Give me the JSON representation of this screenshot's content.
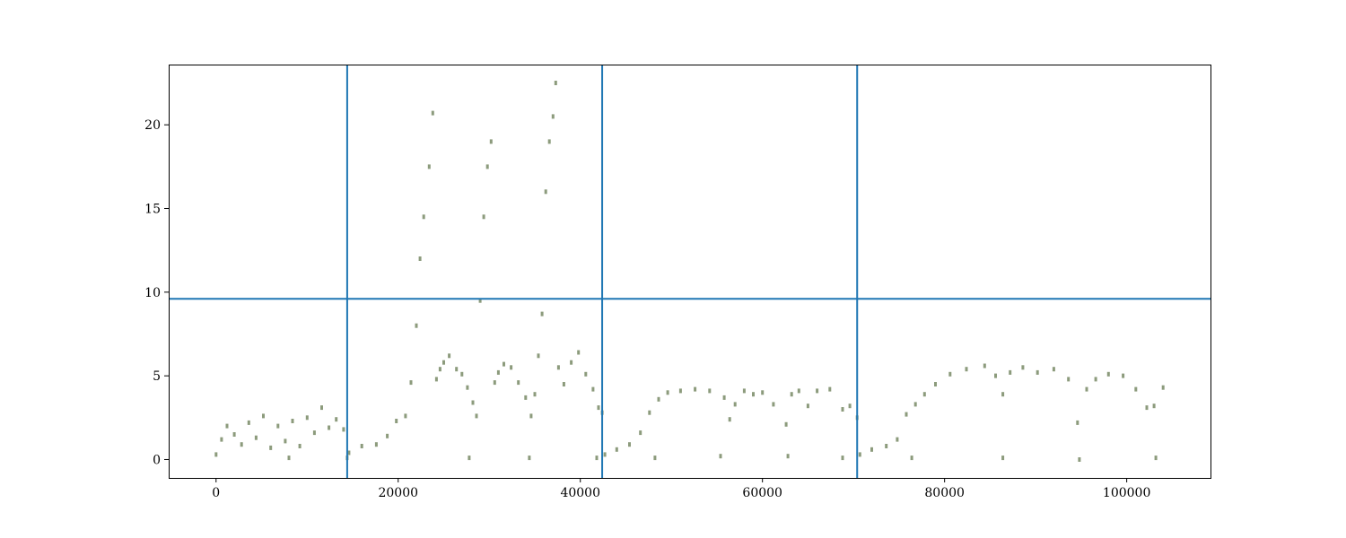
{
  "chart_data": {
    "type": "scatter",
    "title": "",
    "xlabel": "",
    "ylabel": "",
    "xlim": [
      -5200,
      109200
    ],
    "ylim": [
      -1.1,
      23.6
    ],
    "grid": false,
    "legend": "none",
    "point_color": "#8c9b7c",
    "line_color": "#1f77b4",
    "x_ticks": [
      {
        "value": 0,
        "label": "0"
      },
      {
        "value": 20000,
        "label": "20000"
      },
      {
        "value": 40000,
        "label": "40000"
      },
      {
        "value": 60000,
        "label": "60000"
      },
      {
        "value": 80000,
        "label": "80000"
      },
      {
        "value": 100000,
        "label": "100000"
      }
    ],
    "y_ticks": [
      {
        "value": 0,
        "label": "0"
      },
      {
        "value": 5,
        "label": "5"
      },
      {
        "value": 10,
        "label": "10"
      },
      {
        "value": 15,
        "label": "15"
      },
      {
        "value": 20,
        "label": "20"
      }
    ],
    "vertical_lines": [
      14400,
      42400,
      70400
    ],
    "horizontal_lines": [
      9.6
    ],
    "series": [
      {
        "x": [
          0,
          600,
          1200,
          2000,
          2800,
          3600,
          4400,
          5200,
          6000,
          6800,
          7600,
          8400,
          9200,
          10000,
          10800,
          11600,
          12400,
          13200,
          14000,
          14400,
          14600,
          16000,
          17600,
          18800,
          19800,
          20800,
          21400,
          22000,
          22400,
          22800,
          23400,
          23800,
          24200,
          24600,
          25000,
          25600,
          26400,
          27000,
          27600,
          28200,
          28600,
          29000,
          29400,
          29800,
          30200,
          30600,
          31000,
          31600,
          32400,
          33200,
          34000,
          34600,
          35000,
          35400,
          35800,
          36200,
          36600,
          37000,
          37300,
          37600,
          38200,
          39000,
          39800,
          40600,
          41400,
          42000,
          42400,
          42700,
          44000,
          45400,
          46600,
          47600,
          48600,
          49600,
          51000,
          52600,
          54200,
          55800,
          56400,
          57000,
          58000,
          59000,
          60000,
          61200,
          62600,
          63200,
          64000,
          65000,
          66000,
          67400,
          68800,
          69600,
          70400,
          70700,
          72000,
          73600,
          74800,
          75800,
          76800,
          77800,
          79000,
          80600,
          82400,
          84400,
          85600,
          86400,
          87200,
          88600,
          90200,
          92000,
          93600,
          94600,
          95600,
          96600,
          98000,
          99600,
          101000,
          102200,
          103000,
          104000
        ],
        "y": [
          0.3,
          1.2,
          2.0,
          1.5,
          0.9,
          2.2,
          1.3,
          2.6,
          0.7,
          2.0,
          1.1,
          2.3,
          0.8,
          2.5,
          1.6,
          3.1,
          1.9,
          2.4,
          1.8,
          0.1,
          0.4,
          0.8,
          0.9,
          1.4,
          2.3,
          2.6,
          4.6,
          8.0,
          12.0,
          14.5,
          17.5,
          20.7,
          4.8,
          5.4,
          5.8,
          6.2,
          5.4,
          5.1,
          4.3,
          3.4,
          2.6,
          9.5,
          14.5,
          17.5,
          19.0,
          4.6,
          5.2,
          5.7,
          5.5,
          4.6,
          3.7,
          2.6,
          3.9,
          6.2,
          8.7,
          16.0,
          19.0,
          20.5,
          22.5,
          5.5,
          4.5,
          5.8,
          6.4,
          5.1,
          4.2,
          3.1,
          2.8,
          0.3,
          0.6,
          0.9,
          1.6,
          2.8,
          3.6,
          4.0,
          4.1,
          4.2,
          4.1,
          3.7,
          2.4,
          3.3,
          4.1,
          3.9,
          4.0,
          3.3,
          2.1,
          3.9,
          4.1,
          3.2,
          4.1,
          4.2,
          3.0,
          3.2,
          2.5,
          0.3,
          0.6,
          0.8,
          1.2,
          2.7,
          3.3,
          3.9,
          4.5,
          5.1,
          5.4,
          5.6,
          5.0,
          3.9,
          5.2,
          5.5,
          5.2,
          5.4,
          4.8,
          2.2,
          4.2,
          4.8,
          5.1,
          5.0,
          4.2,
          3.1,
          3.2,
          4.3
        ]
      },
      {
        "x": [
          8000,
          27800,
          34400,
          41800,
          48200,
          55400,
          62800,
          68800,
          76400,
          86400,
          94800,
          103200
        ],
        "y": [
          0.1,
          0.1,
          0.1,
          0.1,
          0.1,
          0.2,
          0.2,
          0.1,
          0.1,
          0.1,
          0.0,
          0.1
        ]
      }
    ]
  }
}
